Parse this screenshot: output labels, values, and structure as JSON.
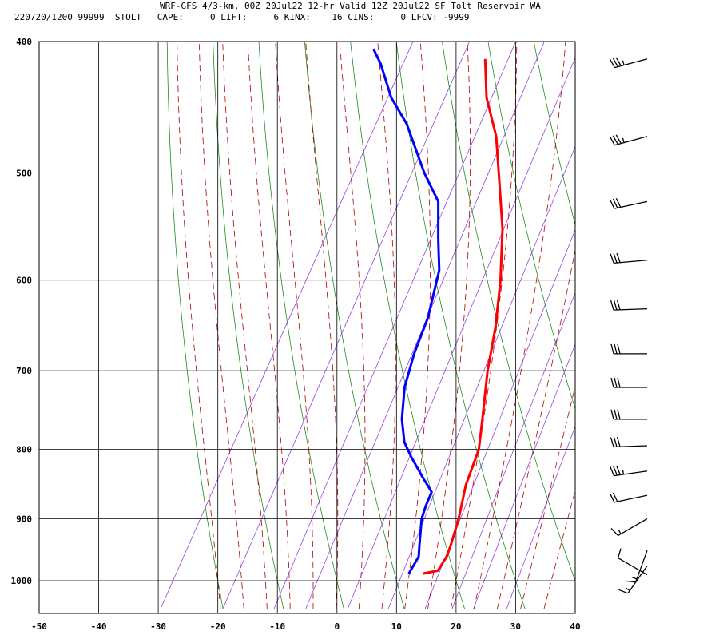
{
  "header": {
    "line1": "WRF-GFS 4/3-km, 00Z 20Jul22 12-hr Valid 12Z 20Jul22 SF Tolt Reservoir WA",
    "line2": "220720/1200 99999  STOLT   CAPE:     0 LIFT:     6 KINX:    16 CINS:     0 LFCV: -9999"
  },
  "chart_data": {
    "type": "line",
    "chart_kind": "skew-T log-p sounding",
    "xlabel": "",
    "ylabel": "",
    "xlim": [
      -50,
      40
    ],
    "ylim_pressure": [
      1040,
      400
    ],
    "y_scale": "log",
    "grid": true,
    "x_ticks": [
      -50,
      -40,
      -30,
      -20,
      -10,
      0,
      10,
      20,
      30,
      40
    ],
    "pressure_ticks": [
      400,
      500,
      600,
      700,
      800,
      900,
      1000
    ],
    "background_line_colors": {
      "dry_adiabats": "#008000",
      "moist_adiabats": "#b00000",
      "mixing_ratio": "#8a2be2",
      "grid": "#000000"
    },
    "series": [
      {
        "color": "#ff0000",
        "points": [
          [
            988,
            13.8
          ],
          [
            983,
            16.0
          ],
          [
            960,
            16.2
          ],
          [
            940,
            15.8
          ],
          [
            900,
            14.7
          ],
          [
            850,
            12.8
          ],
          [
            800,
            11.7
          ],
          [
            760,
            9.5
          ],
          [
            700,
            5.9
          ],
          [
            650,
            3.2
          ],
          [
            600,
            -0.3
          ],
          [
            550,
            -4.7
          ],
          [
            500,
            -10.5
          ],
          [
            470,
            -14.3
          ],
          [
            440,
            -19.5
          ],
          [
            412,
            -23.3
          ]
        ]
      },
      {
        "color": "#0000ff",
        "points": [
          [
            988,
            11.4
          ],
          [
            960,
            11.5
          ],
          [
            940,
            10.5
          ],
          [
            900,
            8.5
          ],
          [
            880,
            8.0
          ],
          [
            860,
            7.7
          ],
          [
            840,
            5.0
          ],
          [
            810,
            1.0
          ],
          [
            790,
            -1.5
          ],
          [
            760,
            -4.0
          ],
          [
            720,
            -6.5
          ],
          [
            680,
            -8.0
          ],
          [
            640,
            -9.0
          ],
          [
            590,
            -11.5
          ],
          [
            560,
            -14.5
          ],
          [
            525,
            -18.0
          ],
          [
            500,
            -23.0
          ],
          [
            460,
            -30.5
          ],
          [
            440,
            -35.5
          ],
          [
            415,
            -40.5
          ],
          [
            405,
            -43.0
          ]
        ]
      }
    ],
    "wind_barbs": [
      {
        "p": 412,
        "dir_deg": 255,
        "speed_kt": 35
      },
      {
        "p": 470,
        "dir_deg": 255,
        "speed_kt": 35
      },
      {
        "p": 525,
        "dir_deg": 258,
        "speed_kt": 30
      },
      {
        "p": 580,
        "dir_deg": 265,
        "speed_kt": 30
      },
      {
        "p": 630,
        "dir_deg": 268,
        "speed_kt": 30
      },
      {
        "p": 680,
        "dir_deg": 270,
        "speed_kt": 30
      },
      {
        "p": 720,
        "dir_deg": 270,
        "speed_kt": 30
      },
      {
        "p": 760,
        "dir_deg": 270,
        "speed_kt": 30
      },
      {
        "p": 795,
        "dir_deg": 268,
        "speed_kt": 30
      },
      {
        "p": 830,
        "dir_deg": 262,
        "speed_kt": 35
      },
      {
        "p": 865,
        "dir_deg": 258,
        "speed_kt": 20
      },
      {
        "p": 900,
        "dir_deg": 240,
        "speed_kt": 15
      },
      {
        "p": 950,
        "dir_deg": 200,
        "speed_kt": 15
      },
      {
        "p": 975,
        "dir_deg": 215,
        "speed_kt": 15
      },
      {
        "p": 990,
        "dir_deg": 300,
        "speed_kt": 10
      }
    ]
  }
}
